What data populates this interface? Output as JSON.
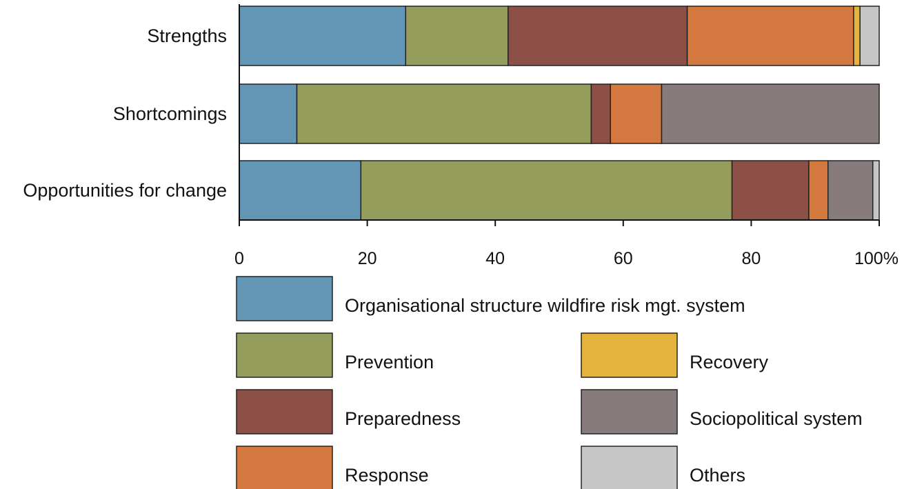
{
  "chart_data": {
    "type": "bar",
    "orientation": "horizontal",
    "stacked": true,
    "categories": [
      "Strengths",
      "Shortcomings",
      "Opportunities for change"
    ],
    "series": [
      {
        "name": "Organisational structure wildfire risk mgt. system",
        "color": "#6395b4",
        "values": [
          26,
          9,
          19
        ]
      },
      {
        "name": "Prevention",
        "color": "#949d5b",
        "values": [
          16,
          46,
          58
        ]
      },
      {
        "name": "Preparedness",
        "color": "#8c5046",
        "values": [
          28,
          3,
          12
        ]
      },
      {
        "name": "Response",
        "color": "#d4793f",
        "values": [
          26,
          8,
          3
        ]
      },
      {
        "name": "Recovery",
        "color": "#e5b43e",
        "values": [
          1,
          0,
          0
        ]
      },
      {
        "name": "Sociopolitical system",
        "color": "#877c7b",
        "values": [
          0,
          34,
          7
        ]
      },
      {
        "name": "Others",
        "color": "#c6c6c7",
        "values": [
          3,
          0,
          1
        ]
      }
    ],
    "x_ticks": [
      0,
      20,
      40,
      60,
      80,
      100
    ],
    "x_tick_labels": [
      "0",
      "20",
      "40",
      "60",
      "80",
      "100%"
    ],
    "xlim": [
      0,
      100
    ],
    "grid": false,
    "legend_position": "bottom"
  }
}
